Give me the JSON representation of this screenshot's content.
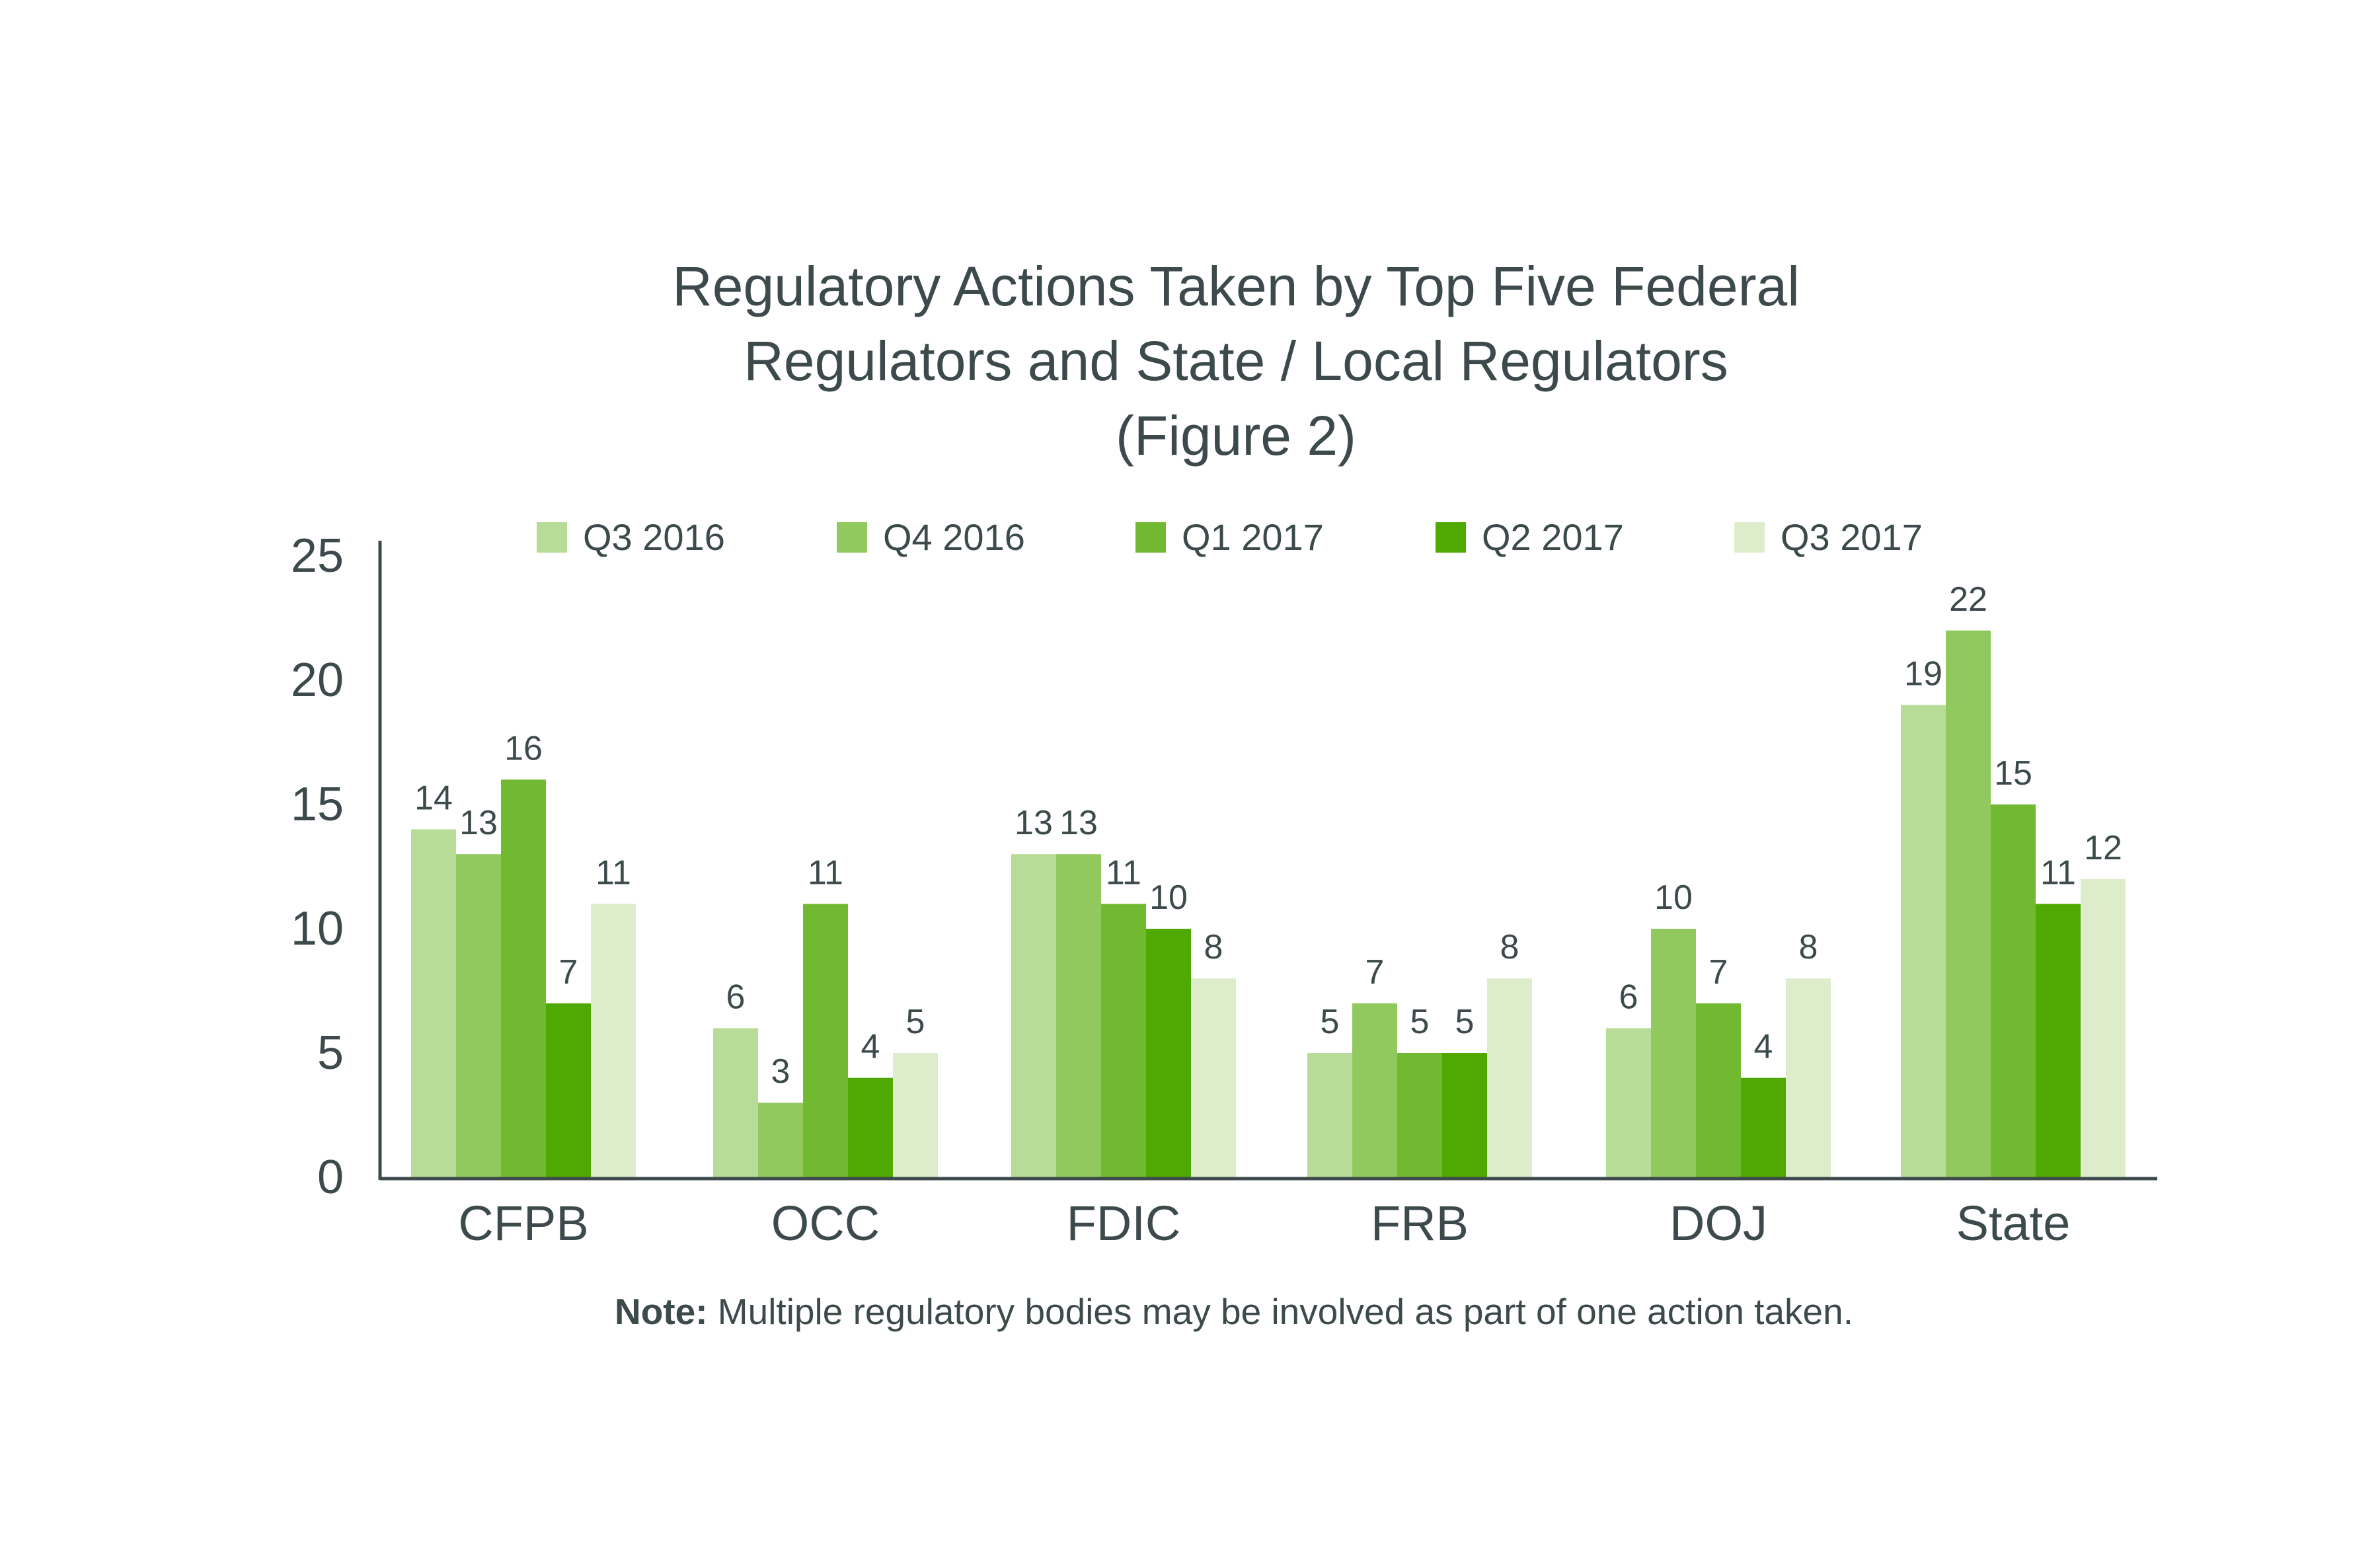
{
  "chart_data": {
    "type": "bar",
    "title_lines": [
      "Regulatory Actions Taken by Top Five Federal",
      "Regulators and State / Local Regulators",
      "(Figure 2)"
    ],
    "categories": [
      "CFPB",
      "OCC",
      "FDIC",
      "FRB",
      "DOJ",
      "State"
    ],
    "series": [
      {
        "name": "Q3 2016",
        "color": "#b7dc97",
        "values": [
          14,
          6,
          13,
          5,
          6,
          19
        ]
      },
      {
        "name": "Q4 2016",
        "color": "#92c95e",
        "values": [
          13,
          3,
          13,
          7,
          10,
          22
        ]
      },
      {
        "name": "Q1 2017",
        "color": "#72b932",
        "values": [
          16,
          11,
          11,
          5,
          7,
          15
        ]
      },
      {
        "name": "Q2 2017",
        "color": "#4fa900",
        "values": [
          7,
          4,
          10,
          5,
          4,
          11
        ]
      },
      {
        "name": "Q3 2017",
        "color": "#ddedcb",
        "values": [
          11,
          5,
          8,
          8,
          8,
          12
        ]
      }
    ],
    "y_ticks": [
      "0",
      "5",
      "10",
      "15",
      "20",
      "25"
    ],
    "ylim": [
      0,
      25
    ],
    "legend_position": "top",
    "grid": false,
    "note_label": "Note:",
    "note_text": " Multiple regulatory bodies may be involved as part of one action taken."
  }
}
